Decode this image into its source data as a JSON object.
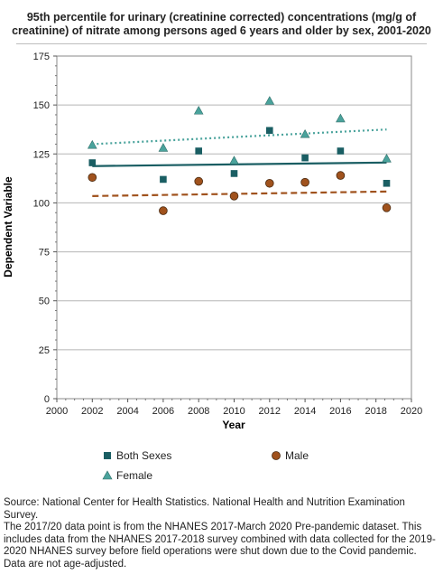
{
  "title_lines": [
    "95th percentile for urinary (creatinine corrected) concentrations (mg/g of",
    "creatinine) of nitrate among  persons aged 6 years and older by sex, 2001-2020"
  ],
  "chart_data": {
    "type": "scatter",
    "xlabel": "Year",
    "ylabel": "Dependent Variable",
    "xlim": [
      2000,
      2020
    ],
    "ylim": [
      0,
      175
    ],
    "xticks": [
      2000,
      2002,
      2004,
      2006,
      2008,
      2010,
      2012,
      2014,
      2016,
      2018,
      2020
    ],
    "yticks": [
      0,
      25,
      50,
      75,
      100,
      125,
      150,
      175
    ],
    "grid": "horizontal",
    "legend_position": "bottom",
    "series": [
      {
        "name": "Both Sexes",
        "marker": "square",
        "color": "#1a5e63",
        "x": [
          2002,
          2006,
          2008,
          2010,
          2012,
          2014,
          2016,
          2018.6
        ],
        "y": [
          120.5,
          112.0,
          126.5,
          115.0,
          137.0,
          123.0,
          126.5,
          110.0
        ],
        "trend": {
          "style": "solid",
          "x": [
            2002,
            2018.6
          ],
          "y": [
            118.8,
            120.6
          ]
        }
      },
      {
        "name": "Male",
        "marker": "circle",
        "color": "#a0521d",
        "x": [
          2002,
          2006,
          2008,
          2010,
          2012,
          2014,
          2016,
          2018.6
        ],
        "y": [
          113.0,
          96.0,
          111.0,
          103.5,
          110.0,
          110.5,
          114.0,
          97.5
        ],
        "trend": {
          "style": "dashed",
          "x": [
            2002,
            2018.6
          ],
          "y": [
            103.5,
            105.8
          ]
        }
      },
      {
        "name": "Female",
        "marker": "triangle",
        "color": "#4aa39c",
        "x": [
          2002,
          2006,
          2008,
          2010,
          2012,
          2014,
          2016,
          2018.6
        ],
        "y": [
          129.5,
          128.0,
          147.0,
          121.5,
          152.0,
          135.0,
          143.0,
          122.5
        ],
        "trend": {
          "style": "dotted",
          "x": [
            2002,
            2018.6
          ],
          "y": [
            130.0,
            137.5
          ]
        }
      }
    ]
  },
  "footnotes": [
    "Source: National Center for Health Statistics. National Health and Nutrition Examination Survey.",
    "The 2017/20 data point is from the NHANES 2017-March 2020 Pre-pandemic dataset. This includes data from the NHANES 2017-2018 survey combined with data collected for the 2019-2020 NHANES survey before field operations were shut down due to the Covid pandemic.",
    "Data are not age-adjusted."
  ]
}
